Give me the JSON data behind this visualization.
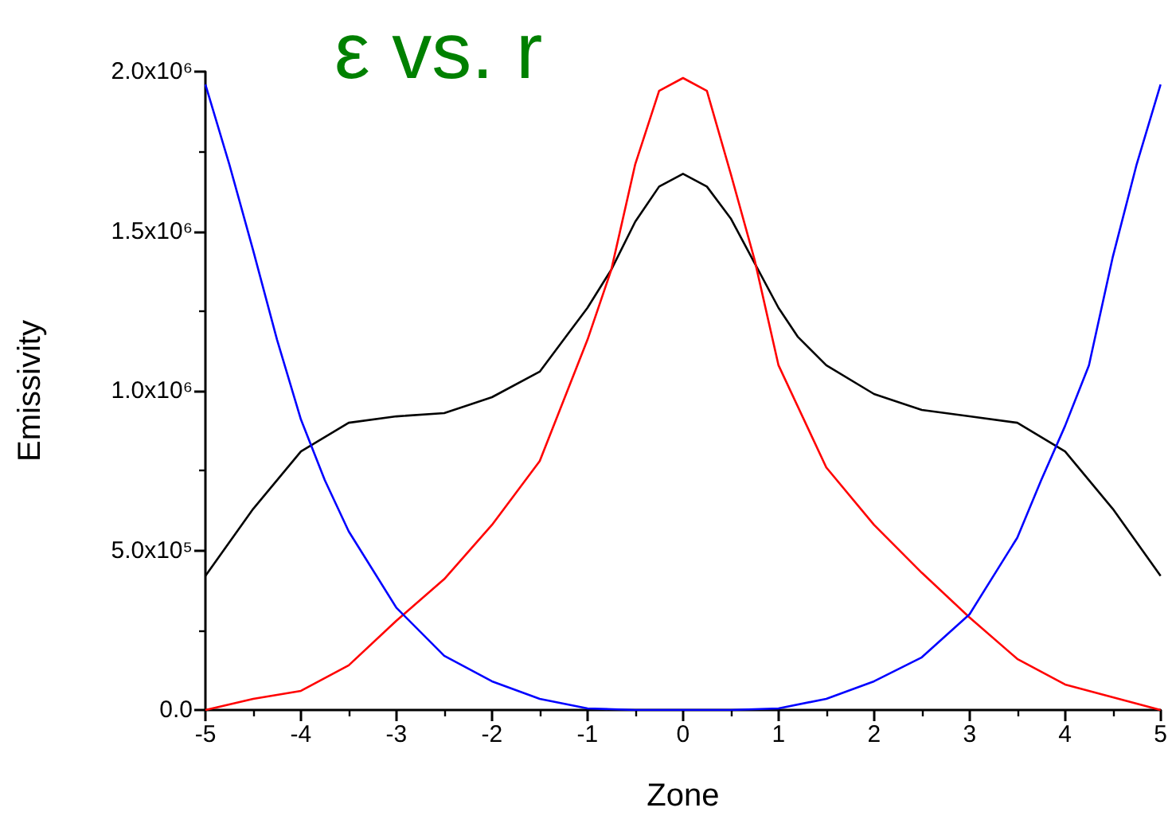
{
  "chart_data": {
    "type": "line",
    "title": "ε vs. r",
    "xlabel": "Zone",
    "ylabel": "Emissivity",
    "xlim": [
      -5,
      5
    ],
    "xticks": [
      -5,
      -4,
      -3,
      -2,
      -1,
      0,
      1,
      2,
      3,
      4,
      5
    ],
    "ylim": [
      0,
      2000000
    ],
    "yticks": [
      {
        "value": 0,
        "label": "0.0"
      },
      {
        "value": 500000,
        "label": "5.0x10⁵"
      },
      {
        "value": 1000000,
        "label": "1.0x10⁶"
      },
      {
        "value": 1500000,
        "label": "1.5x10⁶"
      },
      {
        "value": 2000000,
        "label": "2.0x10⁶"
      }
    ],
    "grid": false,
    "marker": "none",
    "line_style": "solid",
    "series": [
      {
        "color": "#000000",
        "x": [
          -5,
          -4.5,
          -4,
          -3.5,
          -3,
          -2.5,
          -2,
          -1.5,
          -1.2,
          -1,
          -0.75,
          -0.5,
          -0.25,
          0,
          0.25,
          0.5,
          0.75,
          1,
          1.2,
          1.5,
          2,
          2.5,
          3,
          3.5,
          4,
          4.5,
          5
        ],
        "values": [
          420000,
          630000,
          810000,
          900000,
          920000,
          930000,
          980000,
          1060000,
          1180000,
          1260000,
          1380000,
          1530000,
          1640000,
          1680000,
          1640000,
          1540000,
          1400000,
          1260000,
          1170000,
          1080000,
          990000,
          940000,
          920000,
          900000,
          810000,
          630000,
          420000
        ]
      },
      {
        "color": "#ff0000",
        "x": [
          -5,
          -4.5,
          -4,
          -3.5,
          -3,
          -2.5,
          -2,
          -1.5,
          -1,
          -0.75,
          -0.5,
          -0.25,
          0,
          0.25,
          0.5,
          0.75,
          1,
          1.5,
          2,
          2.5,
          3,
          3.5,
          4,
          4.5,
          5
        ],
        "values": [
          0,
          35000,
          60000,
          140000,
          280000,
          410000,
          580000,
          780000,
          1160000,
          1380000,
          1710000,
          1940000,
          1980000,
          1940000,
          1680000,
          1410000,
          1080000,
          760000,
          580000,
          430000,
          290000,
          160000,
          80000,
          40000,
          0
        ]
      },
      {
        "color": "#0000ff",
        "x": [
          -5,
          -4.75,
          -4.5,
          -4.25,
          -4,
          -3.75,
          -3.5,
          -3,
          -2.5,
          -2,
          -1.5,
          -1,
          -0.5,
          0,
          0.5,
          1,
          1.5,
          2,
          2.5,
          3,
          3.5,
          3.75,
          4,
          4.25,
          4.5,
          4.75,
          5
        ],
        "values": [
          1960000,
          1710000,
          1440000,
          1160000,
          910000,
          720000,
          560000,
          320000,
          170000,
          90000,
          35000,
          5000,
          0,
          0,
          0,
          5000,
          35000,
          90000,
          165000,
          300000,
          540000,
          720000,
          890000,
          1080000,
          1420000,
          1710000,
          1960000
        ]
      }
    ]
  }
}
